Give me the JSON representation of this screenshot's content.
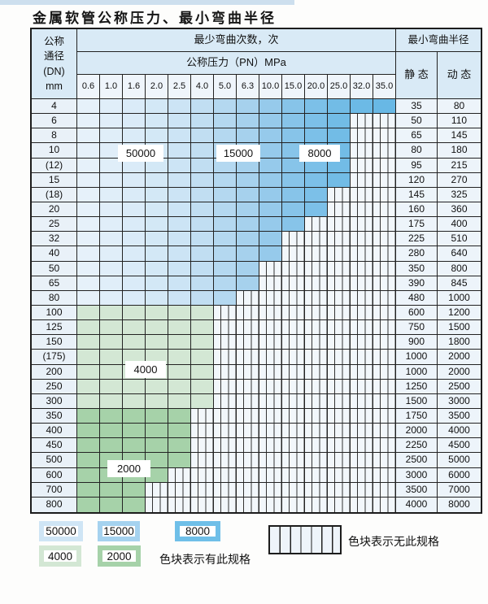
{
  "title": "金属软管公称压力、最小弯曲半径",
  "colors": {
    "blue_ramp": [
      "#e6f1fa",
      "#e0eef9",
      "#daebf8",
      "#d3e8f6",
      "#cce4f5",
      "#c1def2",
      "#b4d8f0",
      "#a6d1ed",
      "#96caeb",
      "#87c4e9",
      "#7cc0e8",
      "#72bce6",
      "#6cbae6",
      "#68b8e5"
    ],
    "green_4000": "#d3e7d4",
    "green_2000": "#a6d2a9",
    "stripe_bg": "#f2f7fb",
    "grid_line": "#222222",
    "header_bg": "#d9eaf6",
    "legend_50000": "#cfe5f5",
    "legend_15000": "#a5d2ef",
    "legend_8000": "#6fbfe8",
    "legend_4000": "#d3e7d4",
    "legend_2000": "#a6d2a9"
  },
  "table": {
    "dn_header_lines": [
      "公称",
      "通径",
      "(DN)",
      "mm"
    ],
    "cycles_header": "最少弯曲次数，次",
    "pressure_header": "公称压力（PN）MPa",
    "pressure_columns": [
      "0.6",
      "1.0",
      "1.6",
      "2.0",
      "2.5",
      "4.0",
      "5.0",
      "6.3",
      "10.0",
      "15.0",
      "20.0",
      "25.0",
      "32.0",
      "35.0"
    ],
    "radius_header": "最小弯曲半径",
    "static_header": "静 态",
    "dynamic_header": "动 态",
    "rows": [
      {
        "dn": "4",
        "colored": 14,
        "region": "blue",
        "static": "35",
        "dynamic": "80"
      },
      {
        "dn": "6",
        "colored": 12,
        "region": "blue",
        "static": "50",
        "dynamic": "110"
      },
      {
        "dn": "8",
        "colored": 12,
        "region": "blue",
        "static": "65",
        "dynamic": "145"
      },
      {
        "dn": "10",
        "colored": 12,
        "region": "blue",
        "static": "80",
        "dynamic": "180"
      },
      {
        "dn": "(12)",
        "colored": 12,
        "region": "blue",
        "static": "95",
        "dynamic": "215"
      },
      {
        "dn": "15",
        "colored": 12,
        "region": "blue",
        "static": "120",
        "dynamic": "270"
      },
      {
        "dn": "(18)",
        "colored": 11,
        "region": "blue",
        "static": "145",
        "dynamic": "325"
      },
      {
        "dn": "20",
        "colored": 11,
        "region": "blue",
        "static": "160",
        "dynamic": "360"
      },
      {
        "dn": "25",
        "colored": 10,
        "region": "blue",
        "static": "175",
        "dynamic": "400"
      },
      {
        "dn": "32",
        "colored": 9,
        "region": "blue",
        "static": "225",
        "dynamic": "510"
      },
      {
        "dn": "40",
        "colored": 9,
        "region": "blue",
        "static": "280",
        "dynamic": "640"
      },
      {
        "dn": "50",
        "colored": 8,
        "region": "blue",
        "static": "350",
        "dynamic": "800"
      },
      {
        "dn": "65",
        "colored": 8,
        "region": "blue",
        "static": "390",
        "dynamic": "845"
      },
      {
        "dn": "80",
        "colored": 7,
        "region": "blue",
        "static": "480",
        "dynamic": "1000"
      },
      {
        "dn": "100",
        "colored": 6,
        "region": "green4",
        "static": "600",
        "dynamic": "1200"
      },
      {
        "dn": "125",
        "colored": 6,
        "region": "green4",
        "static": "750",
        "dynamic": "1500"
      },
      {
        "dn": "150",
        "colored": 6,
        "region": "green4",
        "static": "900",
        "dynamic": "1800"
      },
      {
        "dn": "(175)",
        "colored": 6,
        "region": "green4",
        "static": "1000",
        "dynamic": "2000"
      },
      {
        "dn": "200",
        "colored": 6,
        "region": "green4",
        "static": "1000",
        "dynamic": "2000"
      },
      {
        "dn": "250",
        "colored": 6,
        "region": "green4",
        "static": "1250",
        "dynamic": "2500"
      },
      {
        "dn": "300",
        "colored": 6,
        "region": "green4",
        "static": "1500",
        "dynamic": "3000"
      },
      {
        "dn": "350",
        "colored": 5,
        "region": "green2",
        "static": "1750",
        "dynamic": "3500"
      },
      {
        "dn": "400",
        "colored": 5,
        "region": "green2",
        "static": "2000",
        "dynamic": "4000"
      },
      {
        "dn": "450",
        "colored": 5,
        "region": "green2",
        "static": "2250",
        "dynamic": "4500"
      },
      {
        "dn": "500",
        "colored": 5,
        "region": "green2",
        "static": "2500",
        "dynamic": "5000"
      },
      {
        "dn": "600",
        "colored": 4,
        "region": "green2",
        "static": "3000",
        "dynamic": "6000"
      },
      {
        "dn": "700",
        "colored": 3,
        "region": "green2",
        "static": "3500",
        "dynamic": "7000"
      },
      {
        "dn": "800",
        "colored": 3,
        "region": "green2",
        "static": "4000",
        "dynamic": "8000"
      }
    ]
  },
  "region_labels": {
    "cycles_50000": "50000",
    "cycles_15000": "15000",
    "cycles_8000": "8000",
    "cycles_4000": "4000",
    "cycles_2000": "2000"
  },
  "legend": {
    "items": [
      {
        "id": "legend_50000",
        "label": "50000"
      },
      {
        "id": "legend_15000",
        "label": "15000"
      },
      {
        "id": "legend_8000",
        "label": "8000"
      },
      {
        "id": "legend_4000",
        "label": "4000"
      },
      {
        "id": "legend_2000",
        "label": "2000"
      }
    ],
    "has_spec_text": "色块表示有此规格",
    "no_spec_text": "色块表示无此规格"
  }
}
